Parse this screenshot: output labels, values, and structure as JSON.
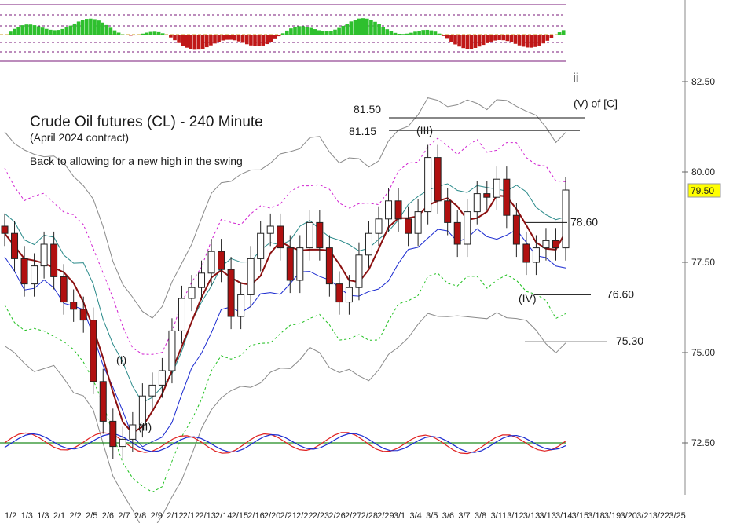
{
  "chart_data": {
    "type": "candlestick",
    "title": "Crude Oil futures (CL) - 240 Minute",
    "subtitle": "(April 2024 contract)",
    "note": "Back to allowing for a new high in the swing",
    "current_price_label": "79.50",
    "current_price": 79.5,
    "ylim": [
      71.3,
      83.3
    ],
    "y_ticks": [
      {
        "value": 82.5,
        "label": "82.50"
      },
      {
        "value": 80.0,
        "label": "80.00"
      },
      {
        "value": 77.5,
        "label": "77.50"
      },
      {
        "value": 75.0,
        "label": "75.00"
      },
      {
        "value": 72.5,
        "label": "72.50"
      }
    ],
    "x_tick_labels": [
      "1/2",
      "1/3",
      "1/3",
      "2/1",
      "2/2",
      "2/5",
      "2/6",
      "2/7",
      "2/8",
      "2/9",
      "2/12",
      "2/12",
      "2/13",
      "2/14",
      "2/15",
      "2/16",
      "2/20",
      "2/21",
      "2/22",
      "2/23",
      "2/26",
      "2/27",
      "2/28",
      "2/29",
      "3/1",
      "3/4",
      "3/5",
      "3/6",
      "3/7",
      "3/8",
      "3/11",
      "3/12",
      "3/13",
      "3/13",
      "3/14",
      "3/15",
      "3/18",
      "3/19",
      "3/20",
      "3/21",
      "3/22",
      "3/25"
    ],
    "wave_labels": [
      {
        "label": "(I)",
        "value": 74.8
      },
      {
        "label": "(II)",
        "value": 72.95
      },
      {
        "label": "(III)",
        "value": 81.15
      },
      {
        "label": "(IV)",
        "value": 76.5
      },
      {
        "label": "ii",
        "value": 82.6
      },
      {
        "label": "(V) of [C]",
        "value": 81.9
      }
    ],
    "levels": [
      {
        "label": "81.50",
        "value": 81.5
      },
      {
        "label": "81.15",
        "value": 81.15
      },
      {
        "label": "78.60",
        "value": 78.6
      },
      {
        "label": "76.60",
        "value": 76.6
      },
      {
        "label": "75.30",
        "value": 75.3
      }
    ],
    "closes": [
      78.3,
      77.6,
      76.9,
      77.4,
      78.0,
      77.1,
      76.4,
      76.2,
      75.9,
      74.2,
      73.1,
      72.4,
      72.6,
      73.0,
      73.8,
      74.1,
      74.5,
      75.6,
      76.5,
      76.8,
      77.2,
      77.8,
      77.3,
      76.0,
      76.6,
      77.6,
      78.3,
      78.5,
      77.9,
      77.0,
      77.9,
      78.6,
      77.9,
      76.9,
      76.4,
      76.8,
      77.7,
      78.3,
      78.7,
      79.2,
      78.7,
      78.3,
      78.9,
      80.4,
      79.2,
      78.6,
      78.0,
      78.9,
      79.4,
      79.3,
      79.8,
      78.8,
      78.0,
      77.5,
      77.9,
      78.1,
      77.9,
      79.5
    ],
    "colors": {
      "up_candle": "#ffffff",
      "down_candle": "#b01010",
      "ma_fast": "#8b1010",
      "band_teal": "#2a8a8a",
      "band_blue": "#1a2ad0",
      "band_gray": "#8a8a8a",
      "band_magenta": "#d020d0",
      "band_green": "#20c020",
      "osc_red": "#e02020",
      "osc_blue": "#1a2ad0",
      "osc_zero": "#1e8a1e",
      "hist_green": "#2ec02e",
      "hist_red": "#c01818",
      "osc_bounds": "#7a1a7a",
      "price_tag": "#ffff00"
    }
  }
}
